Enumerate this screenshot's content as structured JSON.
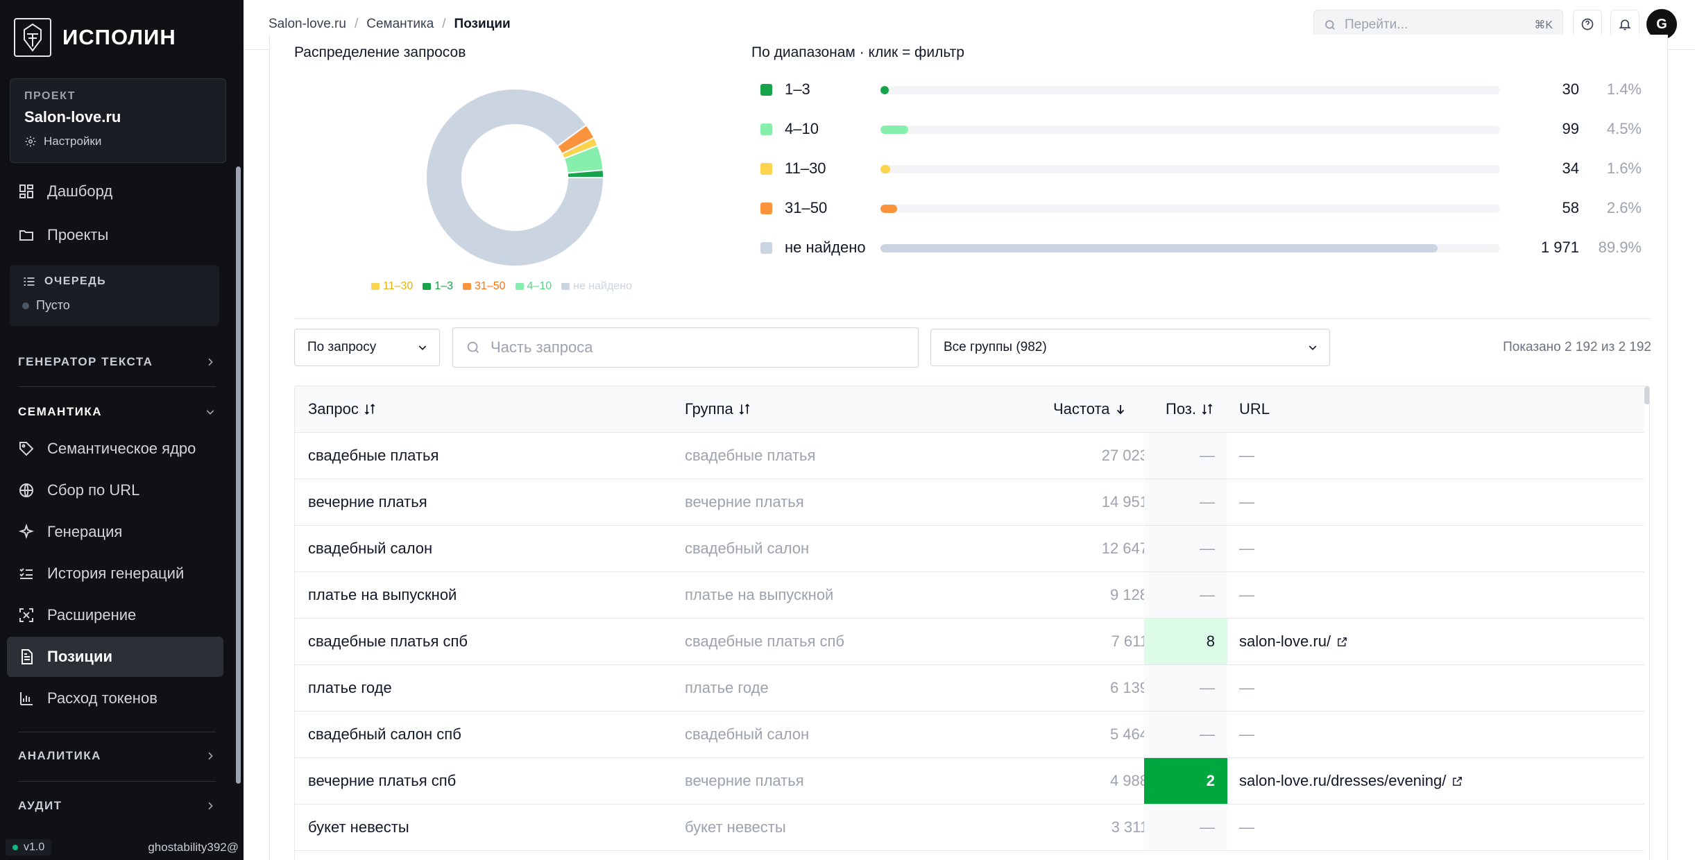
{
  "brand": {
    "name": "ИСПОЛИН"
  },
  "project": {
    "caption": "ПРОЕКТ",
    "name": "Salon-love.ru",
    "settings_label": "Настройки"
  },
  "nav_top": [
    {
      "label": "Дашборд",
      "icon": "dashboard-icon"
    },
    {
      "label": "Проекты",
      "icon": "folder-icon"
    }
  ],
  "queue": {
    "caption": "ОЧЕРЕДЬ",
    "status": "Пусто"
  },
  "sections": {
    "text_generator": "ГЕНЕРАТОР ТЕКСТА",
    "semantics": "СЕМАНТИКА",
    "analytics": "АНАЛИТИКА",
    "audit": "АУДИТ"
  },
  "nav_semantics": [
    {
      "label": "Семантическое ядро",
      "icon": "tag-icon"
    },
    {
      "label": "Сбор по URL",
      "icon": "globe-icon"
    },
    {
      "label": "Генерация",
      "icon": "sparkle-icon"
    },
    {
      "label": "История генераций",
      "icon": "checklist-icon"
    },
    {
      "label": "Расширение",
      "icon": "expand-icon"
    },
    {
      "label": "Позиции",
      "icon": "document-icon",
      "active": true
    },
    {
      "label": "Расход токенов",
      "icon": "bar-chart-icon"
    }
  ],
  "footer": {
    "version": "v1.0",
    "user": "ghostability392@"
  },
  "topbar": {
    "breadcrumb": [
      "Salon-love.ru",
      "Семантика",
      "Позиции"
    ],
    "search_placeholder": "Перейти...",
    "search_shortcut": "⌘K",
    "avatar_letter": "G"
  },
  "distribution": {
    "title": "Распределение запросов",
    "ranges_title": "По диапазонам · клик = фильтр",
    "legend": [
      "11–30",
      "1–3",
      "31–50",
      "4–10",
      "не найдено"
    ]
  },
  "chart_data": {
    "type": "pie",
    "title": "Распределение запросов",
    "categories": [
      "1–3",
      "4–10",
      "11–30",
      "31–50",
      "не найдено"
    ],
    "values": [
      30,
      99,
      34,
      58,
      1971
    ],
    "percents": [
      "1.4%",
      "4.5%",
      "1.6%",
      "2.6%",
      "89.9%"
    ],
    "counts_display": [
      "30",
      "99",
      "34",
      "58",
      "1 971"
    ],
    "colors": [
      "#16a34a",
      "#86efac",
      "#fcd34d",
      "#fb923c",
      "#cbd5e1"
    ],
    "legend_order": [
      "11–30",
      "1–3",
      "31–50",
      "4–10",
      "не найдено"
    ]
  },
  "filters": {
    "mode_select": "По запросу",
    "search_placeholder": "Часть запроса",
    "group_select": "Все группы (982)",
    "shown_text": "Показано 2 192 из 2 192"
  },
  "table": {
    "headers": {
      "query": "Запрос",
      "group": "Группа",
      "freq": "Частота",
      "pos": "Поз.",
      "url": "URL"
    },
    "rows": [
      {
        "query": "свадебные платья",
        "group": "свадебные платья",
        "freq": "27 023",
        "pos": "—",
        "url": "—"
      },
      {
        "query": "вечерние платья",
        "group": "вечерние платья",
        "freq": "14 951",
        "pos": "—",
        "url": "—"
      },
      {
        "query": "свадебный салон",
        "group": "свадебный салон",
        "freq": "12 647",
        "pos": "—",
        "url": "—"
      },
      {
        "query": "платье на выпускной",
        "group": "платье на выпускной",
        "freq": "9 128",
        "pos": "—",
        "url": "—"
      },
      {
        "query": "свадебные платья спб",
        "group": "свадебные платья спб",
        "freq": "7 611",
        "pos": "8",
        "url": "salon-love.ru/",
        "pos_bg": "#dcfce7",
        "pos_color": "#111827"
      },
      {
        "query": "платье годе",
        "group": "платье годе",
        "freq": "6 139",
        "pos": "—",
        "url": "—"
      },
      {
        "query": "свадебный салон спб",
        "group": "свадебный салон",
        "freq": "5 464",
        "pos": "—",
        "url": "—"
      },
      {
        "query": "вечерние платья спб",
        "group": "вечерние платья",
        "freq": "4 988",
        "pos": "2",
        "url": "salon-love.ru/dresses/evening/",
        "pos_bg": "#00a63e",
        "pos_color": "#ffffff"
      },
      {
        "query": "букет невесты",
        "group": "букет невесты",
        "freq": "3 311",
        "pos": "—",
        "url": "—"
      }
    ]
  }
}
